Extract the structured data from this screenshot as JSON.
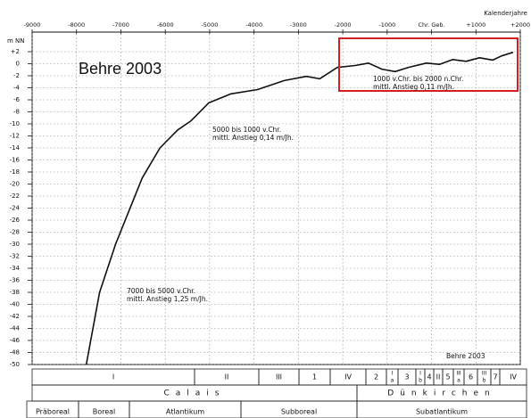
{
  "chart_data": {
    "type": "line",
    "x_label": "Kalenderjahre",
    "y_label": "m NN",
    "xlim": [
      -9000,
      2000
    ],
    "xticks": [
      -9000,
      -8000,
      -7000,
      -6000,
      -5000,
      -4000,
      -3000,
      -2000,
      -1000,
      {
        "value": 0,
        "label": "Chr. Geb."
      },
      {
        "value": 1000,
        "label": "+1000"
      },
      {
        "value": 2000,
        "label": "+2000"
      }
    ],
    "ylim": [
      -50,
      2
    ],
    "yticks": [
      {
        "value": 2,
        "label": "+2"
      },
      0,
      -2,
      -4,
      -6,
      -8,
      -10,
      -12,
      -14,
      -16,
      -18,
      -20,
      -22,
      -24,
      -26,
      -28,
      -30,
      -32,
      -34,
      -36,
      -38,
      -40,
      -42,
      -44,
      -46,
      -48,
      -50
    ],
    "grid": true,
    "series": [
      {
        "color": "#111111",
        "x": [
          -7780,
          -7480,
          -7120,
          -6520,
          -6120,
          -5720,
          -5420,
          -5020,
          -4520,
          -3920,
          -3320,
          -2820,
          -2520,
          -2120,
          -1720,
          -1420,
          -1120,
          -820,
          -520,
          -120,
          180,
          480,
          780,
          1080,
          1380,
          1580,
          1840
        ],
        "values": [
          -50,
          -38,
          -30,
          -19,
          -14,
          -11,
          -9.5,
          -6.5,
          -5,
          -4.3,
          -2.8,
          -2.1,
          -2.5,
          -0.6,
          -0.3,
          0.1,
          -0.9,
          -1.3,
          -0.6,
          0.1,
          -0.1,
          0.7,
          0.4,
          1.0,
          0.6,
          1.3,
          1.9
        ]
      }
    ],
    "annotations": [
      {
        "lines": [
          "Behre 2003"
        ]
      },
      {
        "lines": [
          "1000 v.Chr. bis 2000 n.Chr.",
          "mittl. Anstieg 0,11 m/Jh."
        ]
      },
      {
        "lines": [
          "5000 bis 1000 v.Chr.",
          "mittl. Anstieg 0,14 m/Jh."
        ]
      },
      {
        "lines": [
          "7000 bis 5000 v.Chr.",
          "mittl. Anstieg 1,25 m/Jh."
        ]
      },
      {
        "lines": [
          "Behre 2003"
        ]
      }
    ]
  },
  "table": {
    "phases": [
      {
        "top": "I"
      },
      {
        "top": "II"
      },
      {
        "top": "III"
      },
      {
        "top": "1"
      },
      {
        "top": "IV"
      },
      {
        "top": "2"
      },
      {
        "top": "I",
        "bottom": "a"
      },
      {
        "top": "3"
      },
      {
        "top": "I",
        "bottom": "b"
      },
      {
        "top": "4"
      },
      {
        "top": "II"
      },
      {
        "top": "5"
      },
      {
        "top": "III",
        "bottom": "a"
      },
      {
        "top": "6"
      },
      {
        "top": "III",
        "bottom": "b"
      },
      {
        "top": "7"
      },
      {
        "top": "IV"
      }
    ],
    "transgressions": [
      "Calais",
      "Dünkirchen"
    ],
    "periods": [
      "Präboreal",
      "Boreal",
      "Atlantikum",
      "Subboreal",
      "Subatlantikum"
    ]
  }
}
